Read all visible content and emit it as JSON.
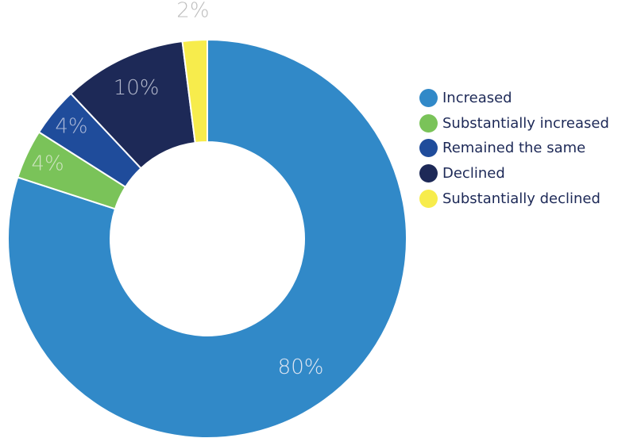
{
  "chart_data": {
    "type": "donut",
    "series": [
      {
        "name": "Increased",
        "value": 80,
        "label": "80%",
        "color": "#3189c8",
        "label_color": "#dfe6f2"
      },
      {
        "name": "Substantially increased",
        "value": 4,
        "label": "4%",
        "color": "#7ac359",
        "label_color": "#cde4c0"
      },
      {
        "name": "Remained the same",
        "value": 4,
        "label": "4%",
        "color": "#1f4c9b",
        "label_color": "#aab8d8"
      },
      {
        "name": "Declined",
        "value": 10,
        "label": "10%",
        "color": "#1d2957",
        "label_color": "#b3b8cc"
      },
      {
        "name": "Substantially declined",
        "value": 2,
        "label": "2%",
        "color": "#f7ec4c",
        "label_color": "#bdbdbd"
      }
    ],
    "legend_position": "right"
  }
}
